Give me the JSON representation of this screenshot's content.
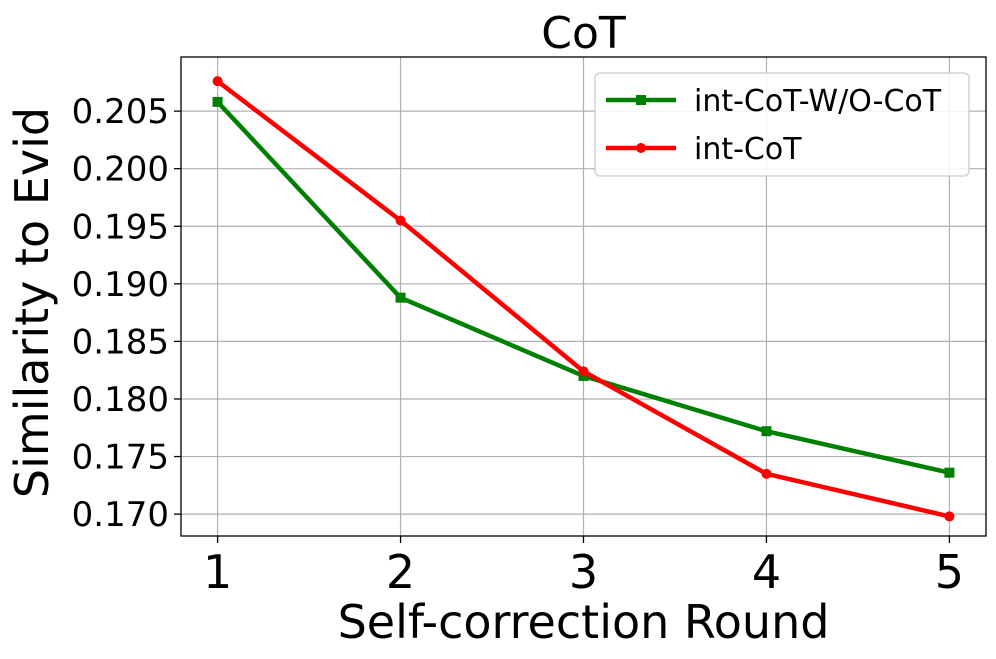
{
  "chart_data": {
    "type": "line",
    "title": "CoT",
    "xlabel": "Self-correction Round",
    "ylabel": "Similarity to Evid",
    "x": [
      1,
      2,
      3,
      4,
      5
    ],
    "xlim": [
      0.8,
      5.2
    ],
    "ylim": [
      0.1681,
      0.2097
    ],
    "yticks": [
      0.17,
      0.175,
      0.18,
      0.185,
      0.19,
      0.195,
      0.2,
      0.205
    ],
    "ytick_labels": [
      "0.170",
      "0.175",
      "0.180",
      "0.185",
      "0.190",
      "0.195",
      "0.200",
      "0.205"
    ],
    "xtick_labels": [
      "1",
      "2",
      "3",
      "4",
      "5"
    ],
    "grid": true,
    "legend_position": "top-right",
    "series": [
      {
        "name": "int-CoT-W/O-CoT",
        "values": [
          0.2058,
          0.1888,
          0.182,
          0.1772,
          0.1736
        ],
        "color": "#008000",
        "marker": "square"
      },
      {
        "name": "int-CoT",
        "values": [
          0.2076,
          0.1955,
          0.1824,
          0.1735,
          0.1698
        ],
        "color": "#ff0000",
        "marker": "circle"
      }
    ]
  }
}
